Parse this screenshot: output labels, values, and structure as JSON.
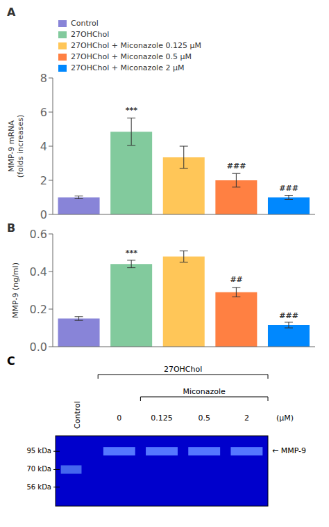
{
  "chart_data": [
    {
      "type": "bar",
      "title": "A",
      "y_label": "MMP-9 mRNA\n(folds increases)",
      "categories": [
        "Control",
        "27OHChol",
        "27OHChol + Miconazole 0.125 μM",
        "27OHChol + Miconazole 0.5 μM",
        "27OHChol + Miconazole 2 μM"
      ],
      "values": [
        1.0,
        4.85,
        3.35,
        2.0,
        1.0
      ],
      "errors": [
        0.08,
        0.8,
        0.65,
        0.4,
        0.12
      ],
      "colors": [
        "#8884d8",
        "#82ca9d",
        "#ffc658",
        "#ff8042",
        "#0088fe"
      ],
      "annotations": [
        {
          "text": "***",
          "x": "27OHChol",
          "y": 5.75
        },
        {
          "text": "###",
          "x": "27OHChol + Miconazole 0.5 μM",
          "y": 2.5
        },
        {
          "text": "###",
          "x": "27OHChol + Miconazole 2 μM",
          "y": 1.2
        }
      ],
      "ylim": [
        0,
        8
      ],
      "yticks": [
        0,
        2,
        4,
        6,
        8
      ],
      "grid": false,
      "legend": "top",
      "tick_labels": "y"
    },
    {
      "type": "bar",
      "title": "B",
      "y_label": "MMP-9 (ng/ml)",
      "categories": [
        "Control",
        "27OHChol",
        "27OHChol + Miconazole 0.125 μM",
        "27OHChol + Miconazole 0.5 μM",
        "27OHChol + Miconazole 2 μM"
      ],
      "values": [
        0.15,
        0.44,
        0.48,
        0.29,
        0.115
      ],
      "errors": [
        0.01,
        0.02,
        0.03,
        0.025,
        0.015
      ],
      "colors": [
        "#8884d8",
        "#82ca9d",
        "#ffc658",
        "#ff8042",
        "#0088fe"
      ],
      "annotations": [
        {
          "text": "***",
          "x": "27OHChol",
          "y": 0.465
        },
        {
          "text": "##",
          "x": "27OHChol + Miconazole 0.5 μM",
          "y": 0.325
        },
        {
          "text": "###",
          "x": "27OHChol + Miconazole 2 μM",
          "y": 0.135
        }
      ],
      "ylim": [
        0,
        0.6
      ],
      "yticks": [
        {
          "value": 0.0,
          "label": "0.0"
        },
        0.2,
        0.4,
        0.6
      ],
      "grid": false,
      "tick_labels": "y"
    },
    {
      "type": "gel",
      "title": "C",
      "annotations": {
        "lane_header": "Control",
        "groups": [
          "27OHChol",
          "Miconazole"
        ],
        "conc_labels": [
          "0",
          "0.125",
          "0.5",
          "2"
        ],
        "unit_label": "(μM)",
        "marker_labels": [
          "95 kDa",
          "70 kDa",
          "56 kDa"
        ],
        "band_label": "← MMP-9"
      },
      "colors": {
        "gel": "#0000cc",
        "band": "#5577ff",
        "control_band": "#4466ee"
      }
    }
  ]
}
